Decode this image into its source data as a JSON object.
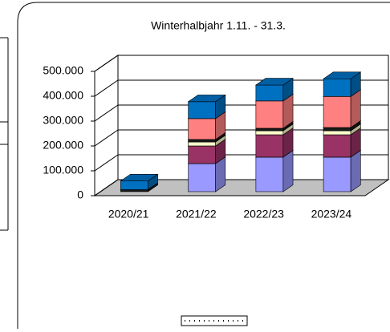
{
  "chart_data": {
    "type": "bar3d_stacked",
    "title": "Winterhalbjahr 1.11. - 31.3.",
    "categories": [
      "2020/21",
      "2021/22",
      "2022/23",
      "2023/24"
    ],
    "series": [
      {
        "color": "#9999ff",
        "values": [
          0,
          113000,
          139000,
          139000
        ]
      },
      {
        "color": "#993366",
        "values": [
          0,
          71000,
          90000,
          90000
        ]
      },
      {
        "color": "#ffffcc",
        "values": [
          0,
          16000,
          16000,
          16000
        ]
      },
      {
        "color": "#1a1a1a",
        "values": [
          8000,
          10000,
          10000,
          13000
        ]
      },
      {
        "color": "#ff8080",
        "values": [
          0,
          84000,
          110000,
          125000
        ]
      },
      {
        "color": "#0070c0",
        "values": [
          35000,
          68000,
          64000,
          71000
        ]
      }
    ],
    "ylim": [
      0,
      500000
    ],
    "yticks": [
      0,
      {
        "value": 100000,
        "label": "100.000"
      },
      {
        "value": 200000,
        "label": "200.000"
      },
      {
        "value": 300000,
        "label": "300.000"
      },
      {
        "value": 400000,
        "label": "400.000"
      },
      {
        "value": 500000,
        "label": "500.000"
      }
    ],
    "grid": true,
    "floor_color": "#c0c0c0"
  }
}
